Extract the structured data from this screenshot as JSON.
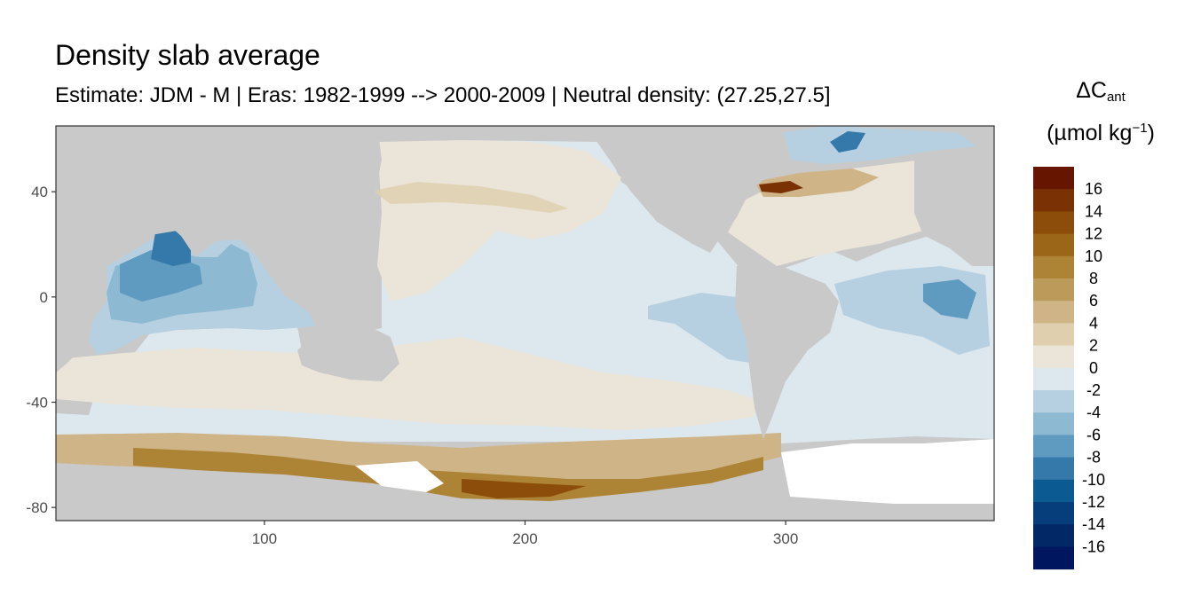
{
  "title": "Density slab average",
  "subtitle": "Estimate: JDM - M | Eras: 1982-1999 --> 2000-2009 | Neutral density: (27.25,27.5]",
  "legend": {
    "title_prefix": "ΔC",
    "title_sub": "ant",
    "units_prefix": "(µmol kg",
    "units_sup": "−1",
    "units_suffix": ")",
    "bins": [
      {
        "label": "16",
        "color": "#661500"
      },
      {
        "label": "14",
        "color": "#7a3205"
      },
      {
        "label": "12",
        "color": "#8c4c0a"
      },
      {
        "label": "10",
        "color": "#9b6618"
      },
      {
        "label": "8",
        "color": "#ad8335"
      },
      {
        "label": "6",
        "color": "#bc9b5a"
      },
      {
        "label": "4",
        "color": "#ceb487"
      },
      {
        "label": "2",
        "color": "#dfcfae"
      },
      {
        "label": "0",
        "color": "#ebe4d8"
      },
      {
        "label": "-2",
        "color": "#dde8ee"
      },
      {
        "label": "-4",
        "color": "#b6d0e2"
      },
      {
        "label": "-6",
        "color": "#8eb9d3"
      },
      {
        "label": "-8",
        "color": "#5f9ac0"
      },
      {
        "label": "-10",
        "color": "#3479aa"
      },
      {
        "label": "-12",
        "color": "#0b5a92"
      },
      {
        "label": "-14",
        "color": "#063e7c"
      },
      {
        "label": "-16",
        "color": "#022866"
      },
      {
        "label": "",
        "color": "#001760"
      }
    ]
  },
  "axes": {
    "xlim": [
      20,
      380
    ],
    "ylim": [
      -85,
      65
    ],
    "x_ticks": [
      100,
      200,
      300
    ],
    "y_ticks": [
      40,
      0,
      -40,
      -80
    ]
  },
  "colors": {
    "land": "#c9c9c9",
    "no_data": "#ffffff",
    "panel_border": "#333333"
  }
}
